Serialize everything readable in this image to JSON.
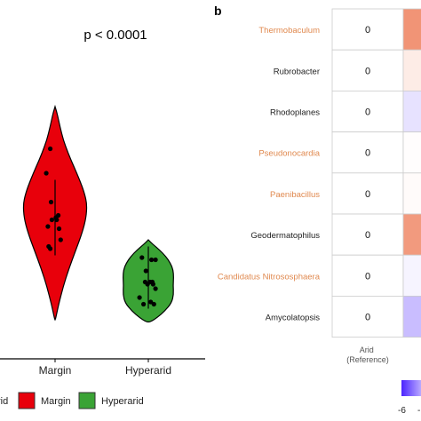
{
  "panel_b_label": "b",
  "chart_data": [
    {
      "type": "violin",
      "title": "p < 0.0001",
      "categories": [
        "Margin",
        "Hyperarid"
      ],
      "colors": {
        "Margin": "#e8000b",
        "Hyperarid": "#3aa335"
      },
      "legend": {
        "placement": "bottom",
        "items": [
          "rid",
          "Margin",
          "Hyperarid"
        ]
      },
      "xlabel": "",
      "ylabel": "",
      "points": {
        "Margin": [
          [
            -0.6,
            9.4
          ],
          [
            -1.1,
            8.3
          ],
          [
            -0.5,
            7.0
          ],
          [
            0.2,
            6.2
          ],
          [
            -0.4,
            6.2
          ],
          [
            0.4,
            6.4
          ],
          [
            0.1,
            6.3
          ],
          [
            -0.9,
            5.9
          ],
          [
            0.5,
            5.8
          ],
          [
            -0.8,
            5.0
          ],
          [
            -0.6,
            4.9
          ],
          [
            0.7,
            5.3
          ]
        ],
        "Hyperarid": [
          [
            -0.8,
            4.5
          ],
          [
            0.4,
            4.4
          ],
          [
            0.9,
            4.4
          ],
          [
            -0.3,
            3.9
          ],
          [
            -0.4,
            3.4
          ],
          [
            0.2,
            3.4
          ],
          [
            0.5,
            3.4
          ],
          [
            0.6,
            3.3
          ],
          [
            0.9,
            3.1
          ],
          [
            -0.1,
            3.3
          ],
          [
            -1.1,
            2.7
          ],
          [
            -0.6,
            2.4
          ],
          [
            0.3,
            2.5
          ],
          [
            0.7,
            2.4
          ]
        ]
      },
      "ranges": {
        "Margin": {
          "min": 4.6,
          "max": 8.0
        },
        "Hyperarid": {
          "min": 2.2,
          "max": 5.0
        }
      },
      "violin_shape": {
        "Margin": [
          [
            1.5,
            10.8
          ],
          [
            2.6,
            10.5
          ],
          [
            3.8,
            10.0
          ],
          [
            5.2,
            9.5
          ],
          [
            6.5,
            9.0
          ],
          [
            7.8,
            8.3
          ],
          [
            8.5,
            7.7
          ],
          [
            8.6,
            7.2
          ],
          [
            8.3,
            6.7
          ],
          [
            7.6,
            6.2
          ],
          [
            6.5,
            5.6
          ],
          [
            5.2,
            5.0
          ],
          [
            3.7,
            4.1
          ],
          [
            2.6,
            3.3
          ],
          [
            1.6,
            2.6
          ],
          [
            1.2,
            2.1
          ]
        ],
        "Hyperarid": [
          [
            2.2,
            2.1
          ],
          [
            3.0,
            3.2
          ],
          [
            3.6,
            4.8
          ],
          [
            4.0,
            5.8
          ],
          [
            4.3,
            6.3
          ],
          [
            4.7,
            6.5
          ],
          [
            5.2,
            6.4
          ]
        ]
      }
    },
    {
      "type": "heatmap",
      "rows": [
        "Thermobaculum",
        "Rubrobacter",
        "Rhodoplanes",
        "Pseudonocardia",
        "Paenibacillus",
        "Geodermatophilus",
        "Candidatus Nitrososphaera",
        "Amycolatopsis"
      ],
      "row_label_colors": [
        "#e0894f",
        "#222222",
        "#222222",
        "#e0894f",
        "#e0894f",
        "#222222",
        "#e0894f",
        "#222222"
      ],
      "columns": [
        "Arid\n(Reference)",
        ""
      ],
      "column_label_lines": [
        "Arid",
        "(Reference)"
      ],
      "values": [
        [
          0,
          5.5
        ],
        [
          0,
          1.0
        ],
        [
          0,
          -0.8
        ],
        [
          0,
          0.1
        ],
        [
          0,
          0.2
        ],
        [
          0,
          5.2
        ],
        [
          0,
          -0.3
        ],
        [
          0,
          -1.8
        ]
      ],
      "cell_labels": [
        "0",
        "0",
        "0",
        "0",
        "0",
        "0",
        "0",
        "0"
      ],
      "colorscale": {
        "low": "#4b24ff",
        "mid": "#ffffff",
        "high": "#f08a6a",
        "min": -6,
        "max": 6
      },
      "colorbar_ticks": [
        "-6",
        "-"
      ]
    }
  ]
}
